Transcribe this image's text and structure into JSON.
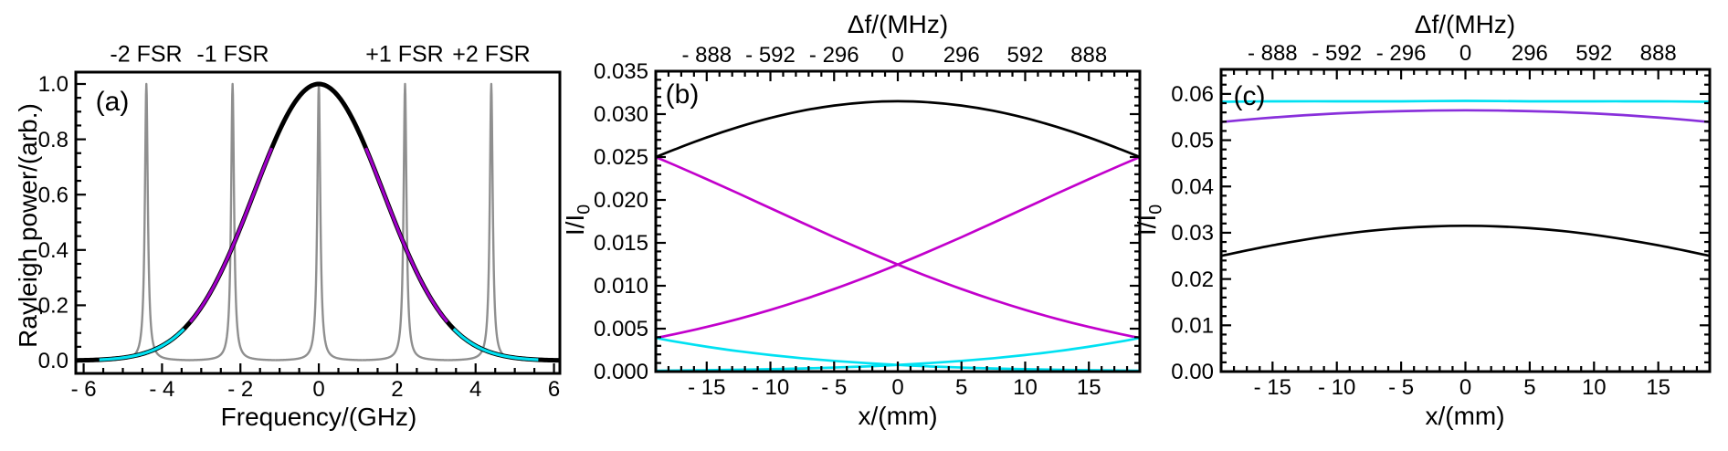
{
  "figure": {
    "background": "#FFFFFF",
    "text_color": "#000000"
  },
  "chart_data": [
    {
      "id": "a",
      "type": "line",
      "panel_label": "(a)",
      "xlabel": "Frequency/(GHz)",
      "ylabel": "Rayleigh power/(arb.)",
      "xlim": [
        -6.2,
        6.15
      ],
      "ylim": [
        -0.0462,
        1.0429
      ],
      "grid": false,
      "legend": "none",
      "xticks": {
        "values": [
          -6,
          -4,
          -2,
          0,
          2,
          4,
          6
        ],
        "labels": [
          "- 6",
          "- 4",
          "- 2",
          "0",
          "2",
          "4",
          "6"
        ],
        "minor_step": 0.5
      },
      "yticks": {
        "values": [
          0,
          0.2,
          0.4,
          0.6,
          0.8,
          1.0
        ],
        "labels": [
          "0.0",
          "0.2",
          "0.4",
          "0.6",
          "0.8",
          "1.0"
        ],
        "minor_step": 0.05
      },
      "annotations": [
        {
          "x": -4.4,
          "label": "-2 FSR"
        },
        {
          "x": -2.2,
          "label": "-1 FSR"
        },
        {
          "x": 2.2,
          "label": "+1 FSR"
        },
        {
          "x": 4.4,
          "label": "+2 FSR"
        }
      ],
      "series": [
        {
          "name": "etalon-comb",
          "color": "#8F8F8F",
          "stroke_width": 2.4,
          "model": {
            "type": "lorentzian-comb",
            "centers": [
              -4.4,
              -2.2,
              0,
              2.2,
              4.4
            ],
            "gamma": 0.045,
            "amp": 1.0,
            "halfspan": 1.1
          }
        },
        {
          "name": "rayleigh-gaussian",
          "color": "#000000",
          "stroke_width": 5,
          "model": {
            "type": "gaussian",
            "amp": 1.0,
            "width_ghz": 2.338,
            "range": [
              -6.2,
              6.15
            ]
          }
        },
        {
          "name": "flank-purple-left",
          "color": "#A000C8",
          "stroke_width": 3.2,
          "model": {
            "type": "gaussian",
            "amp": 1.0,
            "width_ghz": 2.338,
            "range": [
              -3.28,
              -1.2
            ]
          }
        },
        {
          "name": "flank-purple-right",
          "color": "#A000C8",
          "stroke_width": 3.2,
          "model": {
            "type": "gaussian",
            "amp": 1.0,
            "width_ghz": 2.338,
            "range": [
              1.2,
              3.28
            ]
          }
        },
        {
          "name": "tail-cyan-left",
          "color": "#00E1F2",
          "stroke_width": 3.2,
          "model": {
            "type": "gaussian",
            "amp": 1.0,
            "width_ghz": 2.338,
            "range": [
              -5.6,
              -3.44
            ]
          }
        },
        {
          "name": "tail-cyan-right",
          "color": "#00E1F2",
          "stroke_width": 3.2,
          "model": {
            "type": "gaussian",
            "amp": 1.0,
            "width_ghz": 2.338,
            "range": [
              3.44,
              5.6
            ]
          }
        }
      ]
    },
    {
      "id": "b",
      "type": "line",
      "panel_label": "(b)",
      "xlabel": "x/(mm)",
      "ylabel_main": "I/I",
      "ylabel_sub": "0",
      "top_label": "Δf/(MHz)",
      "xlim": [
        -19,
        19
      ],
      "ylim": [
        0,
        0.035
      ],
      "grid": false,
      "legend": "none",
      "xticks": {
        "values": [
          -15,
          -10,
          -5,
          0,
          5,
          10,
          15
        ],
        "labels": [
          "- 15",
          "- 10",
          "- 5",
          "0",
          "5",
          "10",
          "15"
        ],
        "minor_step": 1
      },
      "yticks": {
        "values": [
          0,
          0.005,
          0.01,
          0.015,
          0.02,
          0.025,
          0.03,
          0.035
        ],
        "labels": [
          "0.000",
          "0.005",
          "0.010",
          "0.015",
          "0.020",
          "0.025",
          "0.030",
          "0.035"
        ],
        "minor_step": 0.001
      },
      "topticks": {
        "values_mhz": [
          -888,
          -592,
          -296,
          0,
          296,
          592,
          888
        ],
        "labels": [
          "- 888",
          "- 592",
          "- 296",
          "0",
          "296",
          "592",
          "888"
        ],
        "mhz_per_mm": 59.2,
        "minor_step_mm": 1
      },
      "series": [
        {
          "name": "order-0fsr-black",
          "color": "#000000",
          "stroke_width": 2.7,
          "points": [
            [
              -19,
              0.025
            ],
            [
              -17.5,
              0.02589
            ],
            [
              -15,
              0.02728
            ],
            [
              -12.5,
              0.0285
            ],
            [
              -10,
              0.02955
            ],
            [
              -7.5,
              0.03039
            ],
            [
              -5,
              0.031
            ],
            [
              -2.5,
              0.03137
            ],
            [
              0,
              0.0315
            ],
            [
              2.5,
              0.03137
            ],
            [
              5,
              0.031
            ],
            [
              7.5,
              0.03039
            ],
            [
              10,
              0.02955
            ],
            [
              12.5,
              0.0285
            ],
            [
              15,
              0.02728
            ],
            [
              17.5,
              0.02589
            ],
            [
              19,
              0.025
            ]
          ]
        },
        {
          "name": "order-plus1fsr-magenta",
          "color": "#C200CC",
          "stroke_width": 2.7,
          "points": [
            [
              -19,
              0.025
            ],
            [
              -17.5,
              0.02405
            ],
            [
              -15,
              0.02242
            ],
            [
              -12.5,
              0.02075
            ],
            [
              -10,
              0.01904
            ],
            [
              -7.5,
              0.01734
            ],
            [
              -5,
              0.01566
            ],
            [
              -2.5,
              0.01404
            ],
            [
              0,
              0.01248
            ],
            [
              2.5,
              0.011
            ],
            [
              5,
              0.00962
            ],
            [
              7.5,
              0.00835
            ],
            [
              10,
              0.00719
            ],
            [
              12.5,
              0.00614
            ],
            [
              15,
              0.0052
            ],
            [
              17.5,
              0.00437
            ],
            [
              19,
              0.00392
            ]
          ]
        },
        {
          "name": "order-minus1fsr-magenta",
          "color": "#C200CC",
          "stroke_width": 2.7,
          "points": [
            [
              -19,
              0.00392
            ],
            [
              -17.5,
              0.00437
            ],
            [
              -15,
              0.0052
            ],
            [
              -12.5,
              0.00614
            ],
            [
              -10,
              0.00719
            ],
            [
              -7.5,
              0.00835
            ],
            [
              -5,
              0.00962
            ],
            [
              -2.5,
              0.011
            ],
            [
              0,
              0.01248
            ],
            [
              2.5,
              0.01404
            ],
            [
              5,
              0.01566
            ],
            [
              7.5,
              0.01734
            ],
            [
              10,
              0.01904
            ],
            [
              12.5,
              0.02075
            ],
            [
              15,
              0.02242
            ],
            [
              17.5,
              0.02405
            ],
            [
              19,
              0.025
            ]
          ]
        },
        {
          "name": "order-plus2fsr-cyan",
          "color": "#00E1F2",
          "stroke_width": 2.7,
          "points": [
            [
              -19,
              0.00392
            ],
            [
              -17.5,
              0.0035
            ],
            [
              -15,
              0.0029
            ],
            [
              -12.5,
              0.00237
            ],
            [
              -10,
              0.00193
            ],
            [
              -7.5,
              0.00155
            ],
            [
              -5,
              0.00124
            ],
            [
              -2.5,
              0.00099
            ],
            [
              0,
              0.00078
            ],
            [
              2.5,
              0.0006
            ],
            [
              5,
              0.00047
            ],
            [
              7.5,
              0.00036
            ],
            [
              10,
              0.00028
            ],
            [
              12.5,
              0.00021
            ],
            [
              15,
              0.00016
            ],
            [
              17.5,
              0.00012
            ],
            [
              19,
              0.0001
            ]
          ]
        },
        {
          "name": "order-minus2fsr-cyan",
          "color": "#00E1F2",
          "stroke_width": 2.7,
          "points": [
            [
              -19,
              0.0001
            ],
            [
              -17.5,
              0.00012
            ],
            [
              -15,
              0.00016
            ],
            [
              -12.5,
              0.00021
            ],
            [
              -10,
              0.00028
            ],
            [
              -7.5,
              0.00036
            ],
            [
              -5,
              0.00047
            ],
            [
              -2.5,
              0.0006
            ],
            [
              0,
              0.00078
            ],
            [
              2.5,
              0.00099
            ],
            [
              5,
              0.00124
            ],
            [
              7.5,
              0.00155
            ],
            [
              10,
              0.00193
            ],
            [
              12.5,
              0.00237
            ],
            [
              15,
              0.0029
            ],
            [
              17.5,
              0.0035
            ],
            [
              19,
              0.00392
            ]
          ]
        }
      ]
    },
    {
      "id": "c",
      "type": "line",
      "panel_label": "(c)",
      "xlabel": "x/(mm)",
      "ylabel_main": "I/I",
      "ylabel_sub": "0",
      "top_label": "Δf/(MHz)",
      "xlim": [
        -19,
        19
      ],
      "ylim": [
        0,
        0.0653
      ],
      "grid": false,
      "legend": "none",
      "xticks": {
        "values": [
          -15,
          -10,
          -5,
          0,
          5,
          10,
          15
        ],
        "labels": [
          "- 15",
          "- 10",
          "- 5",
          "0",
          "5",
          "10",
          "15"
        ],
        "minor_step": 1
      },
      "yticks": {
        "values": [
          0,
          0.01,
          0.02,
          0.03,
          0.04,
          0.05,
          0.06
        ],
        "labels": [
          "0.00",
          "0.01",
          "0.02",
          "0.03",
          "0.04",
          "0.05",
          "0.06"
        ],
        "minor_step": 0.002
      },
      "topticks": {
        "values_mhz": [
          -888,
          -592,
          -296,
          0,
          296,
          592,
          888
        ],
        "labels": [
          "- 888",
          "- 592",
          "- 296",
          "0",
          "296",
          "592",
          "888"
        ],
        "mhz_per_mm": 59.2,
        "minor_step_mm": 1
      },
      "series": [
        {
          "name": "order-0fsr-black",
          "color": "#000000",
          "stroke_width": 2.7,
          "points": [
            [
              -19,
              0.025
            ],
            [
              -17.5,
              0.02589
            ],
            [
              -15,
              0.02728
            ],
            [
              -12.5,
              0.0285
            ],
            [
              -10,
              0.02955
            ],
            [
              -7.5,
              0.03039
            ],
            [
              -5,
              0.031
            ],
            [
              -2.5,
              0.03137
            ],
            [
              0,
              0.0315
            ],
            [
              2.5,
              0.03137
            ],
            [
              5,
              0.031
            ],
            [
              7.5,
              0.03039
            ],
            [
              10,
              0.02955
            ],
            [
              12.5,
              0.0285
            ],
            [
              15,
              0.02728
            ],
            [
              17.5,
              0.02589
            ],
            [
              19,
              0.025
            ]
          ]
        },
        {
          "name": "sum-within-1fsr-purple",
          "color": "#8930DB",
          "stroke_width": 2.7,
          "points": [
            [
              -19,
              0.05392
            ],
            [
              -17.5,
              0.05431
            ],
            [
              -15,
              0.0549
            ],
            [
              -12.5,
              0.05539
            ],
            [
              -10,
              0.05578
            ],
            [
              -7.5,
              0.05608
            ],
            [
              -5,
              0.05628
            ],
            [
              -2.5,
              0.05641
            ],
            [
              0,
              0.05646
            ],
            [
              2.5,
              0.05641
            ],
            [
              5,
              0.05628
            ],
            [
              7.5,
              0.05608
            ],
            [
              10,
              0.05578
            ],
            [
              12.5,
              0.05539
            ],
            [
              15,
              0.0549
            ],
            [
              17.5,
              0.05431
            ],
            [
              19,
              0.05392
            ]
          ]
        },
        {
          "name": "sum-within-2fsr-cyan",
          "color": "#00E1F2",
          "stroke_width": 2.7,
          "points": [
            [
              -19,
              0.0583
            ],
            [
              -15,
              0.0584
            ],
            [
              -10,
              0.0584
            ],
            [
              -5,
              0.0584
            ],
            [
              0,
              0.0585
            ],
            [
              5,
              0.0584
            ],
            [
              10,
              0.0584
            ],
            [
              15,
              0.0584
            ],
            [
              19,
              0.0583
            ]
          ]
        }
      ]
    }
  ]
}
